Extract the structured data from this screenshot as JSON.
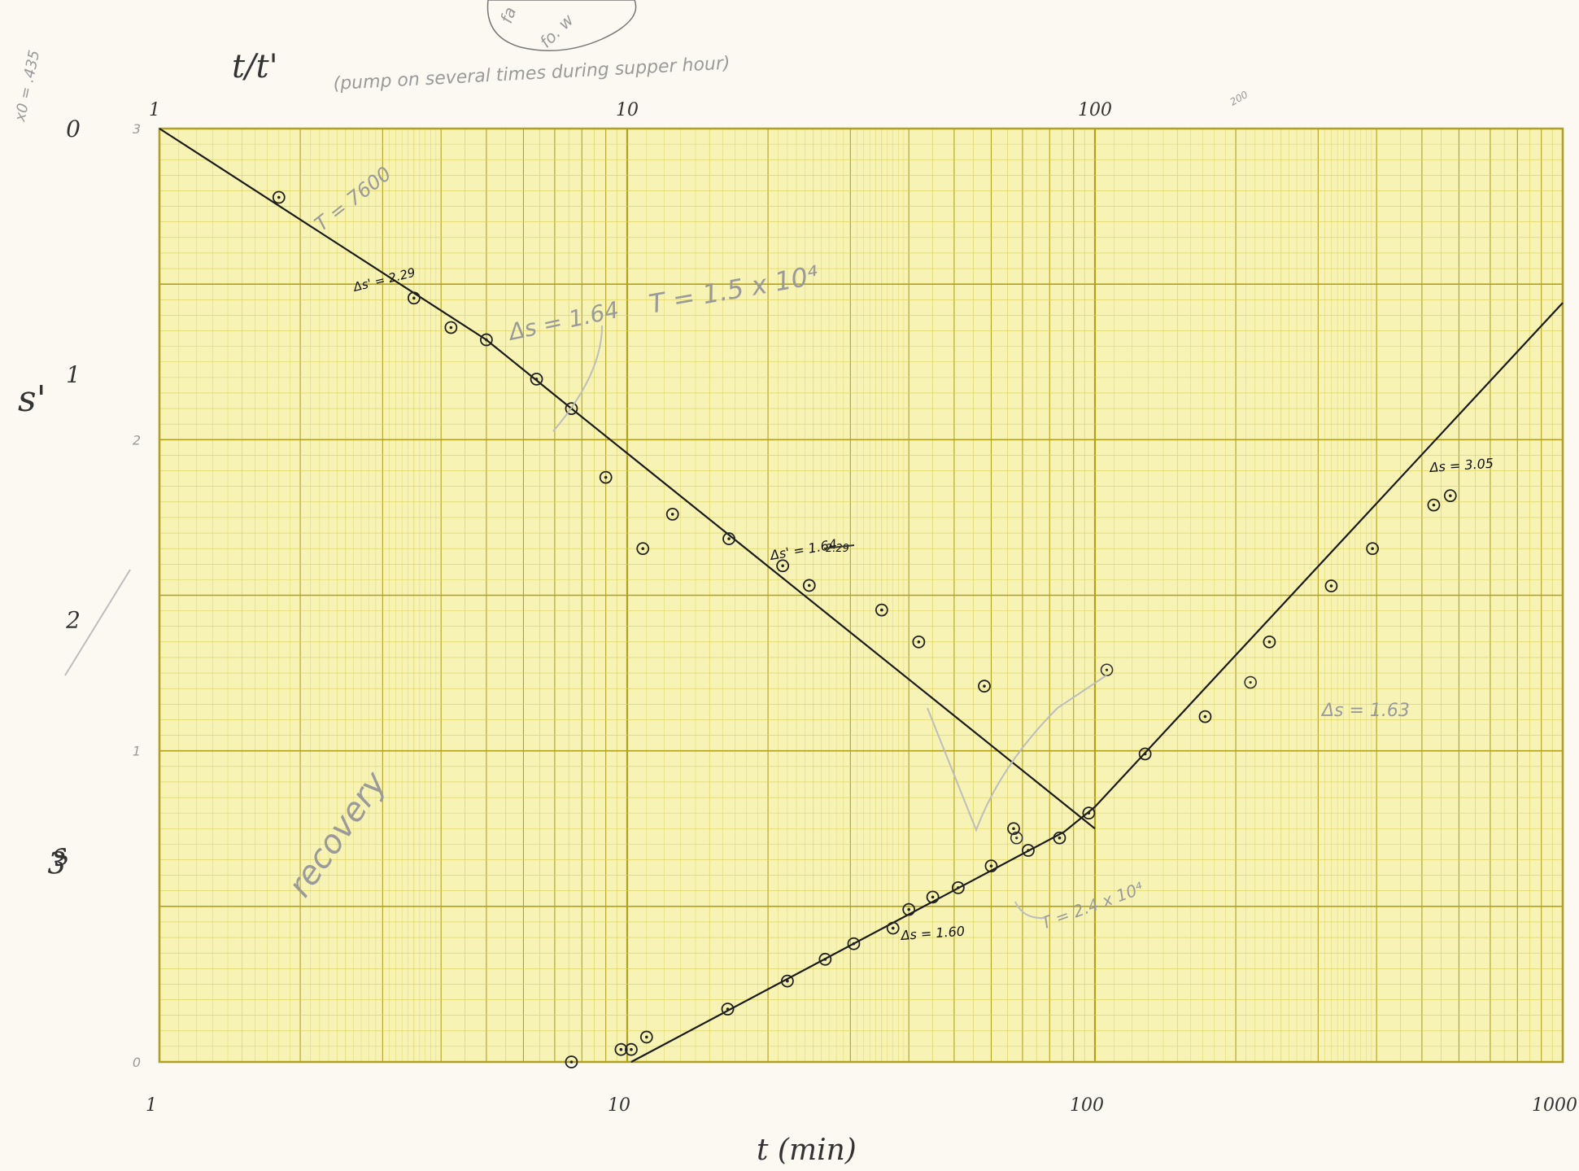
{
  "chart_data": {
    "type": "scatter",
    "title": "t/t'",
    "header_note": "(pump on several times during supper hour)",
    "corner_note": "x0 = .435",
    "corner_bubble": [
      "fa",
      "fo. w"
    ],
    "xlabel": "t (min)",
    "x_scale": "log",
    "xlim": [
      1,
      1000
    ],
    "bottom_tick_labels": [
      "1",
      "10",
      "100",
      "1000"
    ],
    "top_tick_labels": [
      "1",
      "10",
      "100"
    ],
    "top_extra_label": "200",
    "left_axis_label": "s'",
    "left_tick_labels": [
      "0",
      "1",
      "2",
      "3"
    ],
    "left_tick_values": [
      0,
      1,
      2,
      3
    ],
    "left_ylim": [
      0,
      3.8
    ],
    "second_axis_label": "s",
    "second_axis_tick_labels": [
      "0",
      "1",
      "2",
      "3"
    ],
    "second_axis_tick_values": [
      0,
      1,
      2,
      3
    ],
    "second_axis_ylim": [
      0,
      3
    ],
    "grid": true,
    "series": [
      {
        "axis": "left",
        "points": [
          {
            "x": 1.8,
            "y": 0.28
          },
          {
            "x": 3.5,
            "y": 0.69
          },
          {
            "x": 4.2,
            "y": 0.81
          },
          {
            "x": 5.0,
            "y": 0.86
          },
          {
            "x": 6.4,
            "y": 1.02
          },
          {
            "x": 7.6,
            "y": 1.14
          },
          {
            "x": 9.0,
            "y": 1.42
          },
          {
            "x": 10.8,
            "y": 1.71
          },
          {
            "x": 12.5,
            "y": 1.57
          },
          {
            "x": 16.5,
            "y": 1.67
          },
          {
            "x": 21.5,
            "y": 1.78
          },
          {
            "x": 24.5,
            "y": 1.86
          },
          {
            "x": 35.0,
            "y": 1.96
          },
          {
            "x": 42.0,
            "y": 2.09
          },
          {
            "x": 58.0,
            "y": 2.27
          },
          {
            "x": 67.0,
            "y": 2.85
          }
        ]
      },
      {
        "axis": "right",
        "points": [
          {
            "x": 7.6,
            "y": 0.0
          },
          {
            "x": 9.7,
            "y": 0.04
          },
          {
            "x": 10.2,
            "y": 0.04
          },
          {
            "x": 11.0,
            "y": 0.08
          },
          {
            "x": 16.4,
            "y": 0.17
          },
          {
            "x": 22.0,
            "y": 0.26
          },
          {
            "x": 26.5,
            "y": 0.33
          },
          {
            "x": 30.5,
            "y": 0.38
          },
          {
            "x": 37.0,
            "y": 0.43
          },
          {
            "x": 40.0,
            "y": 0.49
          },
          {
            "x": 45.0,
            "y": 0.53
          },
          {
            "x": 51.0,
            "y": 0.56
          },
          {
            "x": 60.0,
            "y": 0.63
          },
          {
            "x": 72.0,
            "y": 0.68
          },
          {
            "x": 84.0,
            "y": 0.72
          },
          {
            "x": 97.0,
            "y": 0.8
          },
          {
            "x": 128.0,
            "y": 0.99
          },
          {
            "x": 172.0,
            "y": 1.11
          },
          {
            "x": 236.0,
            "y": 1.35
          },
          {
            "x": 320.0,
            "y": 1.53
          },
          {
            "x": 392.0,
            "y": 1.65
          },
          {
            "x": 530.0,
            "y": 1.79
          },
          {
            "x": 575.0,
            "y": 1.82
          }
        ]
      }
    ],
    "stray_points": [
      {
        "axis": "right",
        "x": 68.0,
        "y": 0.72
      },
      {
        "axis": "right",
        "x": 106.0,
        "y": 1.26
      },
      {
        "axis": "right",
        "x": 215.0,
        "y": 1.22
      }
    ],
    "fit_lines": [
      {
        "axis": "left",
        "points": [
          [
            1.0,
            0.0
          ],
          [
            5.0,
            0.86
          ],
          [
            7.6,
            1.14
          ],
          [
            100.0,
            2.85
          ]
        ]
      },
      {
        "axis": "right",
        "points": [
          [
            10.2,
            0.0
          ],
          [
            86.0,
            0.74
          ],
          [
            100.0,
            0.82
          ],
          [
            1000.0,
            2.44
          ]
        ]
      }
    ],
    "annotations": {
      "ink": [
        "Δs' = 2.29",
        "Δs' = 1.64",
        "Δs = 1.60",
        "Δs = 3.05"
      ],
      "pencil": [
        "T = 7600",
        "Δs = 1.64",
        "T = 1.5 x 10⁴",
        "T = 2.4 x 10⁴",
        "Δs = 1.63",
        "recovery"
      ],
      "struck_values": [
        "2.29"
      ]
    }
  }
}
